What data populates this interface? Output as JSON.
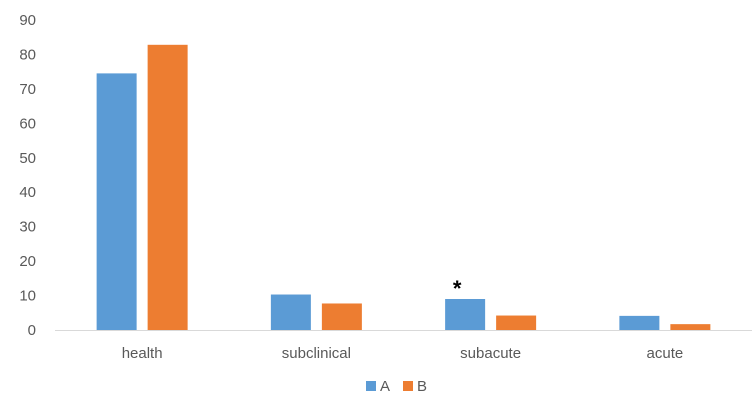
{
  "chart_data": {
    "type": "bar",
    "title": "",
    "xlabel": "",
    "ylabel": "",
    "categories": [
      "health",
      "subclinical",
      "subacute",
      "acute"
    ],
    "series": [
      {
        "name": "A",
        "color": "#5B9BD5",
        "values": [
          74.5,
          10.3,
          9.0,
          4.1
        ]
      },
      {
        "name": "B",
        "color": "#ED7D31",
        "values": [
          82.8,
          7.7,
          4.2,
          1.7
        ]
      }
    ],
    "ylim": [
      0,
      90
    ],
    "yticks": [
      "0",
      "10",
      "20",
      "30",
      "40",
      "50",
      "60",
      "70",
      "80",
      "90"
    ],
    "grid": false,
    "legend": "bottom",
    "annotations": [
      {
        "text": "*",
        "category": "subacute",
        "series": "A"
      }
    ]
  }
}
